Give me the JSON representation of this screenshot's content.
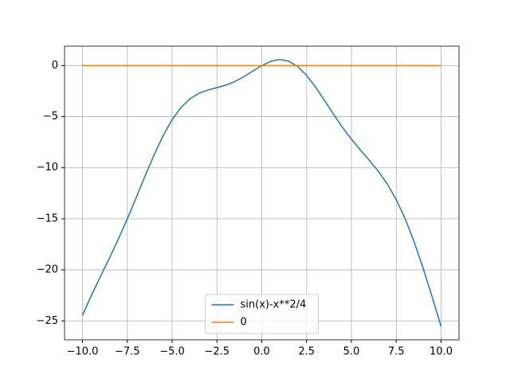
{
  "chart_data": {
    "type": "line",
    "x": [
      -10,
      -9.5,
      -9,
      -8.5,
      -8,
      -7.5,
      -7,
      -6.5,
      -6,
      -5.5,
      -5,
      -4.5,
      -4,
      -3.5,
      -3,
      -2.5,
      -2,
      -1.5,
      -1,
      -0.5,
      0,
      0.5,
      1,
      1.5,
      2,
      2.5,
      3,
      3.5,
      4,
      4.5,
      5,
      5.5,
      6,
      6.5,
      7,
      7.5,
      8,
      8.5,
      9,
      9.5,
      10
    ],
    "series": [
      {
        "name": "sin(x)-x**2/4",
        "color": "#1f77b4",
        "values": [
          -24.456,
          -22.487,
          -20.662,
          -18.861,
          -16.989,
          -15.001,
          -12.907,
          -10.778,
          -8.721,
          -6.857,
          -5.291,
          -4.085,
          -3.243,
          -2.712,
          -2.391,
          -2.161,
          -1.909,
          -1.56,
          -1.091,
          -0.542,
          0,
          0.417,
          0.591,
          0.435,
          -0.091,
          -0.964,
          -2.109,
          -3.413,
          -4.757,
          -6.04,
          -7.209,
          -8.268,
          -9.279,
          -10.347,
          -11.593,
          -13.125,
          -15.011,
          -17.264,
          -19.838,
          -22.638,
          -25.544
        ]
      },
      {
        "name": "0",
        "color": "#ff7f0e",
        "values": [
          0,
          0,
          0,
          0,
          0,
          0,
          0,
          0,
          0,
          0,
          0,
          0,
          0,
          0,
          0,
          0,
          0,
          0,
          0,
          0,
          0,
          0,
          0,
          0,
          0,
          0,
          0,
          0,
          0,
          0,
          0,
          0,
          0,
          0,
          0,
          0,
          0,
          0,
          0,
          0,
          0
        ]
      }
    ],
    "xlim": [
      -11,
      11
    ],
    "ylim": [
      -26.85,
      1.9
    ],
    "xticks": [
      {
        "value": -10,
        "label": "−10.0"
      },
      {
        "value": -7.5,
        "label": "−7.5"
      },
      {
        "value": -5,
        "label": "−5.0"
      },
      {
        "value": -2.5,
        "label": "−2.5"
      },
      {
        "value": 0,
        "label": "0.0"
      },
      2.5,
      {
        "value": 5,
        "label": "5.0"
      },
      7.5,
      {
        "value": 10,
        "label": "10.0"
      }
    ],
    "yticks": [
      {
        "value": -25,
        "label": "−25"
      },
      {
        "value": -20,
        "label": "−20"
      },
      {
        "value": -15,
        "label": "−15"
      },
      {
        "value": -10,
        "label": "−10"
      },
      {
        "value": -5,
        "label": "−5"
      },
      0
    ],
    "grid": true,
    "legend": "lower center"
  }
}
